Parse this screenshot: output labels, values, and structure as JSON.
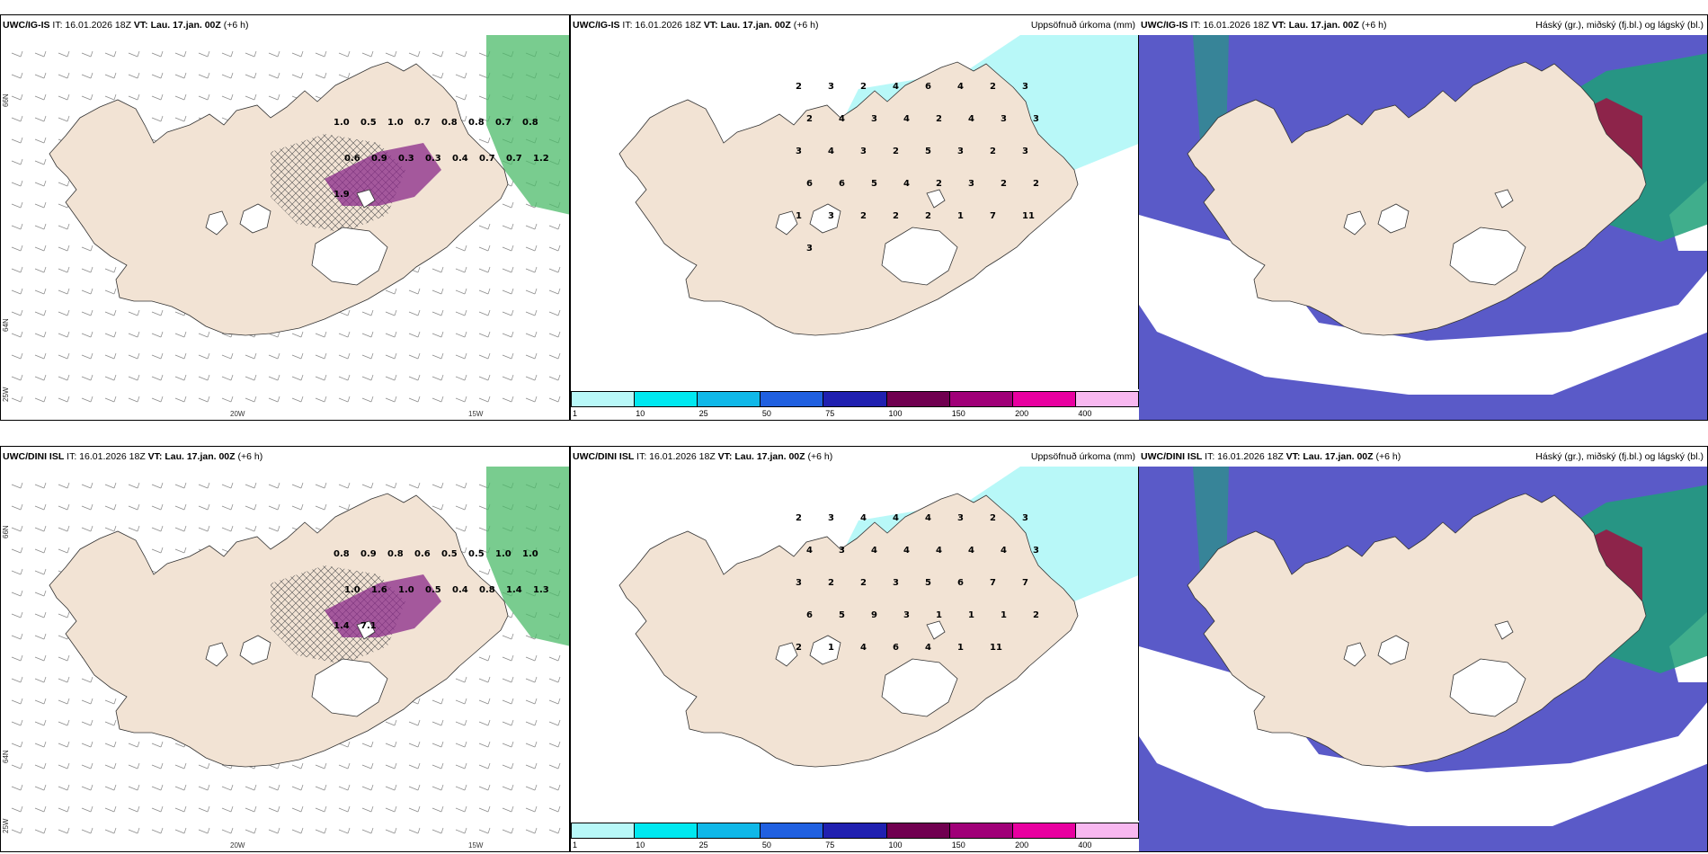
{
  "panels": [
    {
      "model": "UWC/IG-IS",
      "it": "IT: 16.01.2026 18Z",
      "vt_label": "VT:",
      "vt_value": "Lau. 17.jan. 00Z",
      "lead": "(+6 h)",
      "right_title": ""
    },
    {
      "model": "UWC/IG-IS",
      "it": "IT: 16.01.2026 18Z",
      "vt_label": "VT:",
      "vt_value": "Lau. 17.jan. 00Z",
      "lead": "(+6 h)",
      "right_title": "Uppsöfnuð úrkoma (mm)"
    },
    {
      "model": "UWC/IG-IS",
      "it": "IT: 16.01.2026 18Z",
      "vt_label": "VT:",
      "vt_value": "Lau. 17.jan. 00Z",
      "lead": "(+6 h)",
      "right_title": "Háský (gr.), miðský (fj.bl.) og lágský (bl.)"
    },
    {
      "model": "UWC/DINI ISL",
      "it": "IT: 16.01.2026 18Z",
      "vt_label": "VT:",
      "vt_value": "Lau. 17.jan. 00Z",
      "lead": "(+6 h)",
      "right_title": ""
    },
    {
      "model": "UWC/DINI ISL",
      "it": "IT: 16.01.2026 18Z",
      "vt_label": "VT:",
      "vt_value": "Lau. 17.jan. 00Z",
      "lead": "(+6 h)",
      "right_title": "Uppsöfnuð úrkoma (mm)"
    },
    {
      "model": "UWC/DINI ISL",
      "it": "IT: 16.01.2026 18Z",
      "vt_label": "VT:",
      "vt_value": "Lau. 17.jan. 00Z",
      "lead": "(+6 h)",
      "right_title": "Háský (gr.), miðský (fj.bl.) og lágský (bl.)"
    }
  ],
  "axis_labels": {
    "lat_66n": "66N",
    "lat_64n": "64N",
    "lon_20w": "20W",
    "lon_15w": "15W",
    "lon_25w": "25W"
  },
  "colorbar": {
    "ticks": [
      "1",
      "10",
      "25",
      "50",
      "75",
      "100",
      "150",
      "200",
      "400"
    ],
    "colors": [
      "#b8f8f8",
      "#00e8f0",
      "#10b8e8",
      "#2060e0",
      "#2020b0",
      "#700050",
      "#a00078",
      "#e800a0",
      "#f8b8f0"
    ]
  },
  "colors": {
    "land": "#f2e3d4",
    "precip_light": "#b8f8f8",
    "sea_cloud": "#5a5ac8",
    "glacier": "#ffffff"
  },
  "precip_labels_top": [
    "2",
    "3",
    "2",
    "4",
    "6",
    "4",
    "2",
    "3",
    "2",
    "4",
    "3",
    "4",
    "2",
    "4",
    "3",
    "3",
    "3",
    "4",
    "3",
    "2",
    "5",
    "3",
    "2",
    "3",
    "6",
    "6",
    "5",
    "4",
    "2",
    "3",
    "2",
    "2",
    "1",
    "3",
    "2",
    "2",
    "2",
    "1",
    "7",
    "11",
    "3"
  ],
  "precip_labels_bottom": [
    "2",
    "3",
    "4",
    "4",
    "4",
    "3",
    "2",
    "3",
    "4",
    "3",
    "4",
    "4",
    "4",
    "4",
    "4",
    "3",
    "3",
    "2",
    "2",
    "3",
    "5",
    "6",
    "7",
    "7",
    "6",
    "5",
    "9",
    "3",
    "1",
    "1",
    "1",
    "2",
    "2",
    "1",
    "4",
    "6",
    "4",
    "1",
    "11"
  ],
  "wind_labels_top": [
    "1.0",
    "0.5",
    "1.0",
    "0.7",
    "0.8",
    "0.8",
    "0.7",
    "0.8",
    "0.6",
    "0.9",
    "0.3",
    "0.3",
    "0.4",
    "0.7",
    "0.7",
    "1.2",
    "1.9"
  ],
  "wind_labels_bottom": [
    "0.8",
    "0.9",
    "0.8",
    "0.6",
    "0.5",
    "0.5",
    "1.0",
    "1.0",
    "1.0",
    "1.6",
    "1.0",
    "0.5",
    "0.4",
    "0.8",
    "1.4",
    "1.3",
    "1.4",
    "7.1"
  ]
}
